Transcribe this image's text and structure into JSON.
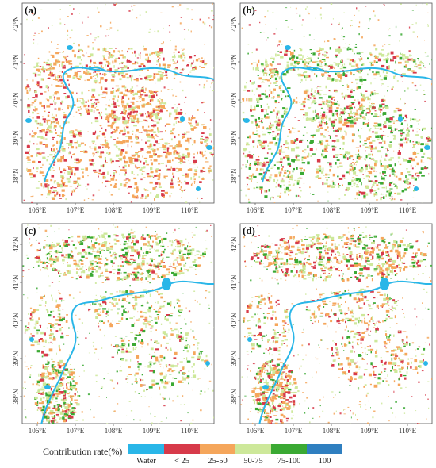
{
  "panels": [
    {
      "label": "(a)"
    },
    {
      "label": "(b)"
    },
    {
      "label": "(c)"
    },
    {
      "label": "(d)"
    }
  ],
  "axes": {
    "lon_ticks": [
      "106°E",
      "107°E",
      "108°E",
      "109°E",
      "110°E"
    ],
    "lat_ticks_top": [
      "42°N",
      "41°N",
      "40°N",
      "39°N",
      "38°N"
    ],
    "lat_ticks_bottom": [
      "42°N",
      "41°N",
      "40°N",
      "39°N",
      "38°N"
    ]
  },
  "legend": {
    "title": "Contribution rate(%)",
    "items": [
      {
        "label": "Water",
        "color": "#29b6e8"
      },
      {
        "label": "< 25",
        "color": "#d73a4a"
      },
      {
        "label": "25-50",
        "color": "#f5a65b"
      },
      {
        "label": "50-75",
        "color": "#cde89a"
      },
      {
        "label": "75-100",
        "color": "#3aa933"
      },
      {
        "label": "100",
        "color": "#2f7fc0"
      }
    ]
  },
  "panel_patterns": [
    {
      "dominant": [
        "#f5a65b",
        "#cde89a",
        "#d73a4a"
      ],
      "weights": [
        0.45,
        0.3,
        0.25
      ]
    },
    {
      "dominant": [
        "#cde89a",
        "#3aa933",
        "#f5a65b",
        "#d73a4a"
      ],
      "weights": [
        0.4,
        0.25,
        0.2,
        0.15
      ]
    },
    {
      "dominant": [
        "#cde89a",
        "#f5a65b",
        "#3aa933",
        "#d73a4a"
      ],
      "weights": [
        0.4,
        0.28,
        0.22,
        0.1
      ]
    },
    {
      "dominant": [
        "#f5a65b",
        "#cde89a",
        "#d73a4a",
        "#3aa933"
      ],
      "weights": [
        0.35,
        0.3,
        0.2,
        0.15
      ]
    }
  ]
}
